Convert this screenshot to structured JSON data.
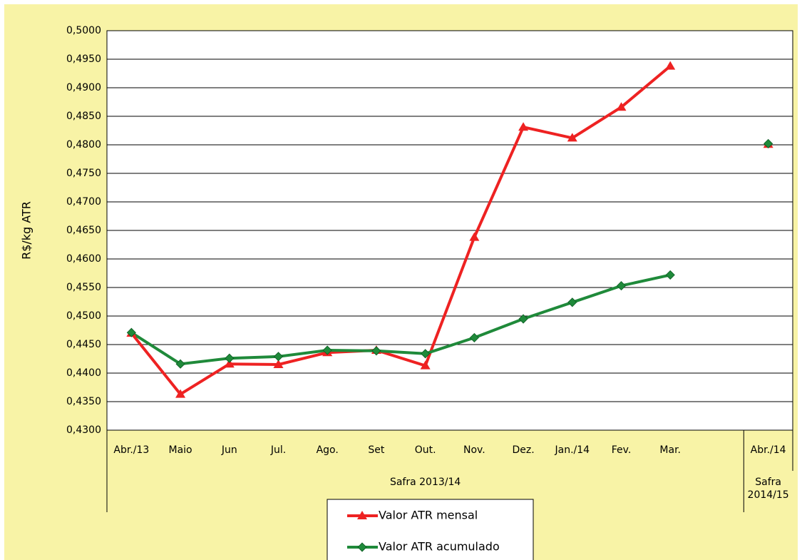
{
  "chart_data": {
    "type": "line",
    "y_label": "R$/kg ATR",
    "categories": [
      "Abr./13",
      "Maio",
      "Jun",
      "Jul.",
      "Ago.",
      "Set",
      "Out.",
      "Nov.",
      "Dez.",
      "Jan./14",
      "Fev.",
      "Mar.",
      null,
      "Abr./14"
    ],
    "groups": [
      "Safra 2013/14",
      "Safra 2014/15"
    ],
    "series": [
      {
        "name": "Valor ATR mensal",
        "color": "#ee2222",
        "marker": "triangle",
        "values": [
          0.447,
          0.4363,
          0.4416,
          0.4415,
          0.4436,
          0.444,
          0.4413,
          0.4638,
          0.4831,
          0.4812,
          0.4866,
          0.4938,
          null,
          0.4801
        ]
      },
      {
        "name": "Valor ATR acumulado",
        "color": "#1f8a3a",
        "marker": "diamond",
        "values": [
          0.4471,
          0.4416,
          0.4426,
          0.4429,
          0.444,
          0.4439,
          0.4434,
          0.4462,
          0.4495,
          0.4524,
          0.4553,
          0.4572,
          null,
          0.4802
        ]
      }
    ],
    "ylim": [
      0.43,
      0.5
    ],
    "yticks": [
      {
        "value": 0.43,
        "label": "0,4300"
      },
      {
        "value": 0.435,
        "label": "0,4350"
      },
      {
        "value": 0.44,
        "label": "0,4400"
      },
      {
        "value": 0.445,
        "label": "0,4450"
      },
      {
        "value": 0.45,
        "label": "0,4500"
      },
      {
        "value": 0.455,
        "label": "0,4550"
      },
      {
        "value": 0.46,
        "label": "0,4600"
      },
      {
        "value": 0.465,
        "label": "0,4650"
      },
      {
        "value": 0.47,
        "label": "0,4700"
      },
      {
        "value": 0.475,
        "label": "0,4750"
      },
      {
        "value": 0.48,
        "label": "0,4800"
      },
      {
        "value": 0.485,
        "label": "0,4850"
      },
      {
        "value": 0.49,
        "label": "0,4900"
      },
      {
        "value": 0.495,
        "label": "0,4950"
      },
      {
        "value": 0.5,
        "label": "0,5000"
      }
    ],
    "grid": true
  }
}
